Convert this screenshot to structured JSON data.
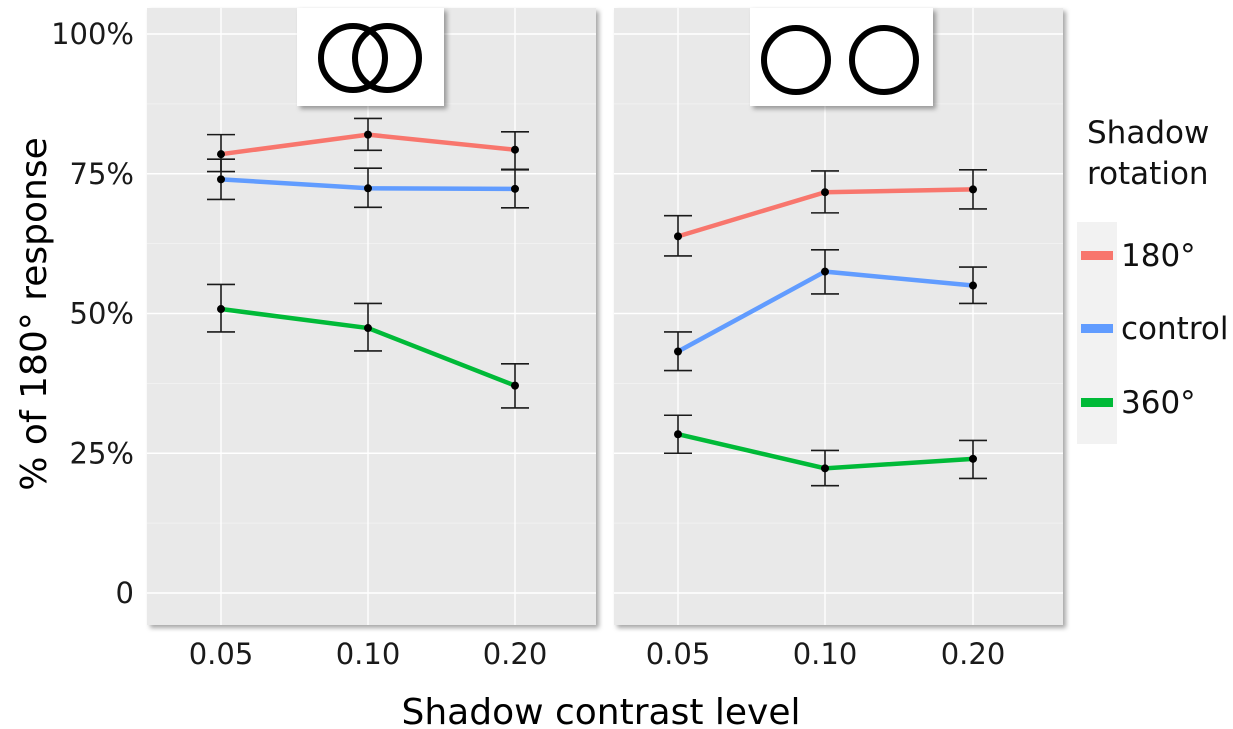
{
  "chart_data": {
    "type": "line",
    "xlabel": "Shadow contrast level",
    "ylabel": "% of 180° response",
    "categories": [
      "0.05",
      "0.10",
      "0.20"
    ],
    "ylim": [
      -0.05,
      1.04
    ],
    "yticks": [
      {
        "value": 0,
        "label": "0"
      },
      {
        "value": 0.25,
        "label": "25%"
      },
      {
        "value": 0.5,
        "label": "50%"
      },
      {
        "value": 0.75,
        "label": "75%"
      },
      {
        "value": 1.0,
        "label": "100%"
      }
    ],
    "grid": true,
    "legend": {
      "title_lines": [
        "Shadow",
        "rotation"
      ],
      "placement": "right",
      "entries": [
        {
          "name": "180°",
          "color": "#f8766d"
        },
        {
          "name": "control",
          "color": "#619cff"
        },
        {
          "name": "360°",
          "color": "#00ba38"
        }
      ]
    },
    "panels": [
      {
        "icon": "overlapping-circles-icon",
        "series": [
          {
            "name": "180°",
            "color": "#f8766d",
            "values": [
              0.785,
              0.82,
              0.793
            ],
            "error_low": [
              0.754,
              0.792,
              0.758
            ],
            "error_high": [
              0.82,
              0.849,
              0.825
            ]
          },
          {
            "name": "control",
            "color": "#619cff",
            "values": [
              0.74,
              0.724,
              0.723
            ],
            "error_low": [
              0.704,
              0.69,
              0.689
            ],
            "error_high": [
              0.776,
              0.76,
              0.757
            ]
          },
          {
            "name": "360°",
            "color": "#00ba38",
            "values": [
              0.508,
              0.474,
              0.371
            ],
            "error_low": [
              0.467,
              0.433,
              0.331
            ],
            "error_high": [
              0.552,
              0.518,
              0.41
            ]
          }
        ]
      },
      {
        "icon": "separate-circles-icon",
        "series": [
          {
            "name": "180°",
            "color": "#f8766d",
            "values": [
              0.638,
              0.717,
              0.722
            ],
            "error_low": [
              0.603,
              0.68,
              0.687
            ],
            "error_high": [
              0.675,
              0.755,
              0.757
            ]
          },
          {
            "name": "control",
            "color": "#619cff",
            "values": [
              0.432,
              0.575,
              0.55
            ],
            "error_low": [
              0.398,
              0.535,
              0.518
            ],
            "error_high": [
              0.467,
              0.614,
              0.583
            ]
          },
          {
            "name": "360°",
            "color": "#00ba38",
            "values": [
              0.284,
              0.223,
              0.24
            ],
            "error_low": [
              0.25,
              0.192,
              0.205
            ],
            "error_high": [
              0.318,
              0.255,
              0.273
            ]
          }
        ]
      }
    ]
  }
}
